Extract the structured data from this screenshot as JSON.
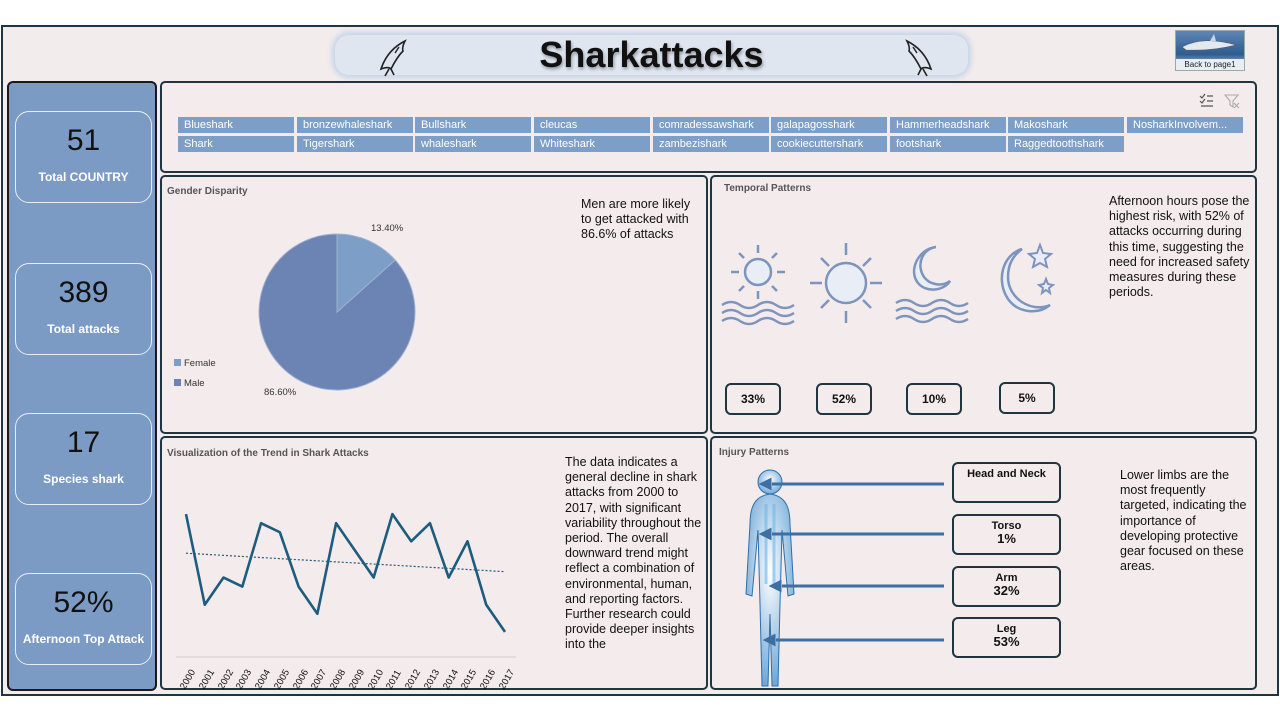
{
  "header": {
    "title": "Sharkattacks",
    "back_button": "Back to page1"
  },
  "kpis": [
    {
      "value": "51",
      "label": "Total COUNTRY"
    },
    {
      "value": "389",
      "label": "Total attacks"
    },
    {
      "value": "17",
      "label": "Species shark"
    },
    {
      "value": "52%",
      "label": "Afternoon Top Attack"
    }
  ],
  "slicer": {
    "items": [
      "Blueshark",
      "bronzewhaleshark",
      "Bullshark",
      "cleucas",
      "comradessawshark",
      "galapagosshark",
      "Hammerheadshark",
      "Makoshark",
      "NosharkInvolvem...",
      "Shark",
      "Tigershark",
      "whaleshark",
      "Whiteshark",
      "zambezishark",
      "cookiecuttershark",
      "footshark",
      "Raggedtoothshark"
    ]
  },
  "gender": {
    "title": "Gender Disparity",
    "note": "Men are more likely to get attacked with 86.6% of attacks",
    "female_label": "Female",
    "male_label": "Male",
    "female_pct": "13.40%",
    "male_pct": "86.60%"
  },
  "temporal": {
    "title": "Temporal Patterns",
    "note": "Afternoon hours pose the highest risk, with 52% of attacks occurring during this time, suggesting the need for increased safety measures during these periods.",
    "values": [
      "33%",
      "52%",
      "10%",
      "5%"
    ]
  },
  "trend": {
    "title": "Visualization of the Trend in Shark Attacks",
    "note": "The data indicates a general decline in shark attacks from 2000 to 2017, with significant variability throughout the period. The overall downward trend might reflect a combination of environmental, human, and reporting factors. Further research could provide deeper insights into the"
  },
  "injury": {
    "title": "Injury Patterns",
    "note": "Lower limbs are the most frequently targeted, indicating the importance of developing protective gear focused on these areas.",
    "items": [
      {
        "name": "Head and Neck",
        "pct": ""
      },
      {
        "name": "Torso",
        "pct": "1%"
      },
      {
        "name": "Arm",
        "pct": "32%"
      },
      {
        "name": "Leg",
        "pct": "53%"
      }
    ]
  },
  "colors": {
    "accent": "#7b9bc4",
    "pie_male": "#6b84b3",
    "pie_female": "#7d9ec6",
    "line": "#1d5c7e",
    "frame": "#1f3540"
  },
  "chart_data": [
    {
      "type": "pie",
      "title": "Gender Disparity",
      "labels": [
        "Female",
        "Male"
      ],
      "values": [
        13.4,
        86.6
      ]
    },
    {
      "type": "line",
      "title": "Visualization of the Trend in Shark Attacks",
      "x": [
        "2000",
        "2001",
        "2002",
        "2003",
        "2004",
        "2005",
        "2006",
        "2007",
        "2008",
        "2009",
        "2010",
        "2011",
        "2012",
        "2013",
        "2014",
        "2015",
        "2016",
        "2017"
      ],
      "series": [
        {
          "values": [
            27,
            17,
            20,
            19,
            26,
            25,
            19,
            16,
            26,
            23,
            20,
            27,
            24,
            26,
            20,
            24,
            17,
            14
          ]
        }
      ],
      "trendline": true,
      "ylim": [
        12,
        29
      ]
    }
  ]
}
